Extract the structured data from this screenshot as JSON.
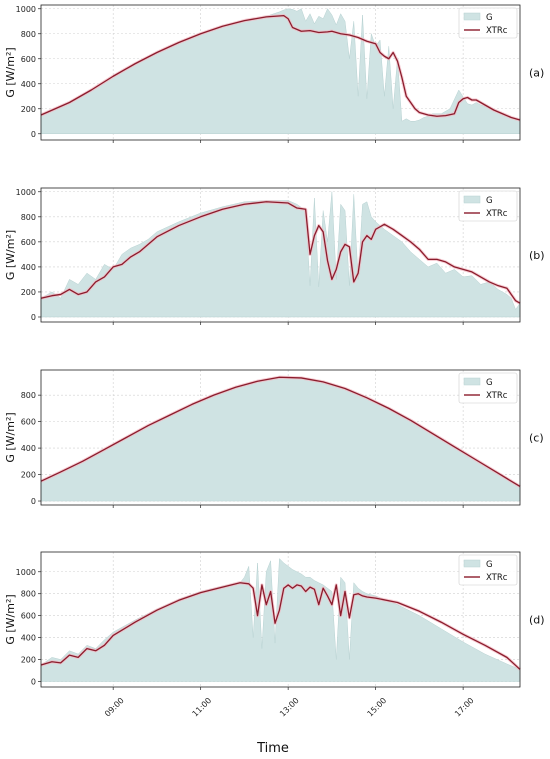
{
  "figure": {
    "xlabel": "Time",
    "xticks": [
      "09:00",
      "11:00",
      "13:00",
      "15:00",
      "17:00"
    ],
    "xtick_hours": [
      9,
      11,
      13,
      15,
      17
    ],
    "xlim": [
      7.35,
      18.3
    ]
  },
  "chart_data": [
    {
      "type": "area",
      "panel_label": "(a)",
      "ylabel": "G [W/m²]",
      "ylim": [
        -50,
        1030
      ],
      "yticks": [
        0,
        200,
        400,
        600,
        800,
        1000
      ],
      "legend": [
        "G",
        "XTRc"
      ],
      "legend_position": "top-right",
      "grid": true,
      "series": [
        {
          "name": "G",
          "kind": "area",
          "color": "#cfe3e3",
          "x": [
            7.35,
            8,
            8.5,
            9,
            9.5,
            10,
            10.5,
            11,
            11.5,
            12,
            12.5,
            12.8,
            12.9,
            13,
            13.1,
            13.2,
            13.3,
            13.4,
            13.5,
            13.6,
            13.7,
            13.8,
            13.9,
            14,
            14.1,
            14.2,
            14.3,
            14.4,
            14.5,
            14.6,
            14.7,
            14.8,
            14.9,
            15,
            15.1,
            15.2,
            15.3,
            15.4,
            15.5,
            15.6,
            15.7,
            15.8,
            15.9,
            16,
            16.1,
            16.2,
            16.3,
            16.5,
            16.7,
            16.9,
            17.1,
            17.2,
            17.3,
            17.4,
            17.5,
            17.6,
            17.8,
            18,
            18.3
          ],
          "y": [
            150,
            250,
            350,
            460,
            560,
            650,
            730,
            800,
            860,
            905,
            940,
            975,
            990,
            1000,
            995,
            980,
            1000,
            900,
            960,
            880,
            940,
            920,
            1000,
            950,
            870,
            960,
            900,
            600,
            900,
            300,
            950,
            280,
            800,
            700,
            750,
            300,
            700,
            200,
            600,
            100,
            120,
            100,
            100,
            110,
            130,
            140,
            160,
            160,
            200,
            350,
            240,
            230,
            250,
            230,
            220,
            200,
            170,
            140,
            110
          ]
        },
        {
          "name": "XTRc",
          "kind": "line",
          "color": "#8b1c2c",
          "x": [
            7.35,
            8,
            8.5,
            9,
            9.5,
            10,
            10.5,
            11,
            11.5,
            12,
            12.5,
            12.9,
            13,
            13.1,
            13.3,
            13.5,
            13.7,
            13.9,
            14,
            14.2,
            14.4,
            14.6,
            14.8,
            15,
            15.1,
            15.2,
            15.3,
            15.4,
            15.5,
            15.6,
            15.7,
            15.8,
            15.9,
            16,
            16.2,
            16.4,
            16.6,
            16.8,
            16.9,
            17,
            17.1,
            17.2,
            17.3,
            17.5,
            17.7,
            17.9,
            18.1,
            18.3
          ],
          "y": [
            150,
            250,
            350,
            460,
            560,
            650,
            730,
            800,
            860,
            905,
            935,
            945,
            920,
            850,
            820,
            825,
            810,
            815,
            820,
            800,
            790,
            770,
            740,
            720,
            650,
            620,
            600,
            650,
            580,
            450,
            300,
            250,
            200,
            170,
            150,
            140,
            145,
            160,
            250,
            280,
            290,
            270,
            270,
            230,
            190,
            160,
            130,
            110
          ]
        }
      ]
    },
    {
      "type": "area",
      "panel_label": "(b)",
      "ylabel": "G [W/m²]",
      "ylim": [
        -40,
        1030
      ],
      "yticks": [
        0,
        200,
        400,
        600,
        800,
        1000
      ],
      "legend": [
        "G",
        "XTRc"
      ],
      "legend_position": "top-right",
      "grid": true,
      "series": [
        {
          "name": "G",
          "kind": "area",
          "color": "#cfe3e3",
          "x": [
            7.35,
            7.6,
            7.8,
            8,
            8.2,
            8.4,
            8.6,
            8.8,
            9,
            9.2,
            9.4,
            9.6,
            9.8,
            10,
            10.5,
            11,
            11.5,
            12,
            12.5,
            13,
            13.2,
            13.4,
            13.5,
            13.6,
            13.7,
            13.8,
            13.9,
            14,
            14.1,
            14.2,
            14.3,
            14.4,
            14.5,
            14.6,
            14.7,
            14.8,
            14.9,
            15,
            15.2,
            15.4,
            15.6,
            15.8,
            16,
            16.2,
            16.4,
            16.6,
            16.8,
            17,
            17.2,
            17.4,
            17.6,
            17.8,
            18,
            18.1,
            18.2,
            18.3
          ],
          "y": [
            150,
            200,
            150,
            300,
            260,
            350,
            300,
            420,
            380,
            500,
            550,
            580,
            620,
            680,
            760,
            830,
            880,
            920,
            930,
            930,
            900,
            850,
            250,
            950,
            240,
            850,
            600,
            1000,
            300,
            900,
            850,
            250,
            980,
            300,
            900,
            920,
            800,
            760,
            700,
            650,
            600,
            520,
            460,
            400,
            430,
            350,
            380,
            320,
            330,
            260,
            280,
            220,
            180,
            150,
            60,
            110
          ]
        },
        {
          "name": "XTRc",
          "kind": "line",
          "color": "#8b1c2c",
          "x": [
            7.35,
            7.6,
            7.8,
            8,
            8.2,
            8.4,
            8.6,
            8.8,
            9,
            9.2,
            9.4,
            9.6,
            9.8,
            10,
            10.5,
            11,
            11.5,
            12,
            12.5,
            13,
            13.2,
            13.4,
            13.5,
            13.6,
            13.7,
            13.8,
            13.9,
            14,
            14.1,
            14.2,
            14.3,
            14.4,
            14.5,
            14.6,
            14.7,
            14.8,
            14.9,
            15,
            15.2,
            15.4,
            15.6,
            15.8,
            16,
            16.2,
            16.4,
            16.6,
            16.8,
            17,
            17.2,
            17.4,
            17.6,
            17.8,
            18,
            18.1,
            18.2,
            18.3
          ],
          "y": [
            150,
            170,
            180,
            220,
            180,
            200,
            280,
            320,
            400,
            420,
            480,
            520,
            580,
            640,
            730,
            800,
            860,
            900,
            920,
            910,
            870,
            860,
            500,
            650,
            730,
            680,
            450,
            300,
            380,
            520,
            580,
            560,
            280,
            350,
            600,
            650,
            620,
            700,
            740,
            700,
            650,
            600,
            540,
            460,
            460,
            440,
            400,
            380,
            360,
            320,
            280,
            250,
            230,
            180,
            130,
            110
          ]
        }
      ]
    },
    {
      "type": "area",
      "panel_label": "(c)",
      "ylabel": "G [W/m²]",
      "ylim": [
        -30,
        990
      ],
      "yticks": [
        0,
        200,
        400,
        600,
        800
      ],
      "legend": [
        "G",
        "XTRc"
      ],
      "legend_position": "top-right",
      "grid": true,
      "series": [
        {
          "name": "G",
          "kind": "area",
          "color": "#cfe3e3",
          "x": [
            7.35,
            7.8,
            8.3,
            8.8,
            9.3,
            9.8,
            10.3,
            10.8,
            11.3,
            11.8,
            12.3,
            12.8,
            13.3,
            13.8,
            14.3,
            14.8,
            15.3,
            15.8,
            16.3,
            16.8,
            17.3,
            17.8,
            18.3
          ],
          "y": [
            150,
            220,
            300,
            390,
            480,
            570,
            650,
            730,
            800,
            860,
            905,
            935,
            930,
            900,
            850,
            780,
            700,
            610,
            510,
            410,
            310,
            210,
            110
          ]
        },
        {
          "name": "XTRc",
          "kind": "line",
          "color": "#8b1c2c",
          "x": [
            7.35,
            7.8,
            8.3,
            8.8,
            9.3,
            9.8,
            10.3,
            10.8,
            11.3,
            11.8,
            12.3,
            12.8,
            13.3,
            13.8,
            14.3,
            14.8,
            15.3,
            15.8,
            16.3,
            16.8,
            17.3,
            17.8,
            18.3
          ],
          "y": [
            150,
            220,
            300,
            390,
            480,
            570,
            650,
            730,
            800,
            860,
            905,
            935,
            930,
            900,
            850,
            780,
            700,
            610,
            510,
            410,
            310,
            210,
            110
          ]
        }
      ]
    },
    {
      "type": "area",
      "panel_label": "(d)",
      "ylabel": "G [W/m²]",
      "ylim": [
        -50,
        1180
      ],
      "yticks": [
        0,
        200,
        400,
        600,
        800,
        1000
      ],
      "legend": [
        "G",
        "XTRc"
      ],
      "legend_position": "top-right",
      "grid": true,
      "series": [
        {
          "name": "G",
          "kind": "area",
          "color": "#cfe3e3",
          "x": [
            7.35,
            7.6,
            7.8,
            8,
            8.2,
            8.4,
            8.6,
            8.8,
            9,
            9.5,
            10,
            10.5,
            11,
            11.5,
            11.9,
            12,
            12.1,
            12.2,
            12.3,
            12.4,
            12.5,
            12.6,
            12.7,
            12.8,
            12.9,
            13,
            13.1,
            13.2,
            13.3,
            13.4,
            13.5,
            13.6,
            13.7,
            13.8,
            13.9,
            14,
            14.1,
            14.2,
            14.3,
            14.4,
            14.5,
            14.6,
            14.7,
            14.8,
            15,
            15.5,
            16,
            16.5,
            17,
            17.5,
            18,
            18.3
          ],
          "y": [
            150,
            220,
            200,
            280,
            250,
            330,
            300,
            380,
            450,
            560,
            660,
            750,
            820,
            870,
            900,
            950,
            1050,
            400,
            1080,
            300,
            1000,
            1100,
            350,
            1120,
            1080,
            1050,
            1020,
            1000,
            980,
            950,
            950,
            920,
            900,
            880,
            850,
            820,
            200,
            950,
            900,
            200,
            900,
            850,
            820,
            800,
            780,
            700,
            600,
            480,
            360,
            250,
            160,
            110
          ]
        },
        {
          "name": "XTRc",
          "kind": "line",
          "color": "#8b1c2c",
          "x": [
            7.35,
            7.6,
            7.8,
            8,
            8.2,
            8.4,
            8.6,
            8.8,
            9,
            9.5,
            10,
            10.5,
            11,
            11.5,
            11.9,
            12.1,
            12.2,
            12.3,
            12.4,
            12.5,
            12.6,
            12.7,
            12.8,
            12.9,
            13,
            13.1,
            13.2,
            13.3,
            13.4,
            13.5,
            13.6,
            13.7,
            13.8,
            13.9,
            14,
            14.1,
            14.2,
            14.3,
            14.4,
            14.5,
            14.6,
            14.7,
            14.8,
            15,
            15.5,
            16,
            16.5,
            17,
            17.5,
            18,
            18.3
          ],
          "y": [
            150,
            180,
            170,
            240,
            220,
            300,
            280,
            330,
            420,
            540,
            650,
            740,
            810,
            860,
            900,
            890,
            850,
            600,
            880,
            700,
            820,
            530,
            650,
            850,
            880,
            850,
            880,
            870,
            820,
            860,
            840,
            700,
            850,
            780,
            700,
            880,
            600,
            820,
            580,
            790,
            800,
            780,
            770,
            760,
            720,
            640,
            540,
            430,
            330,
            220,
            110
          ]
        }
      ]
    }
  ]
}
